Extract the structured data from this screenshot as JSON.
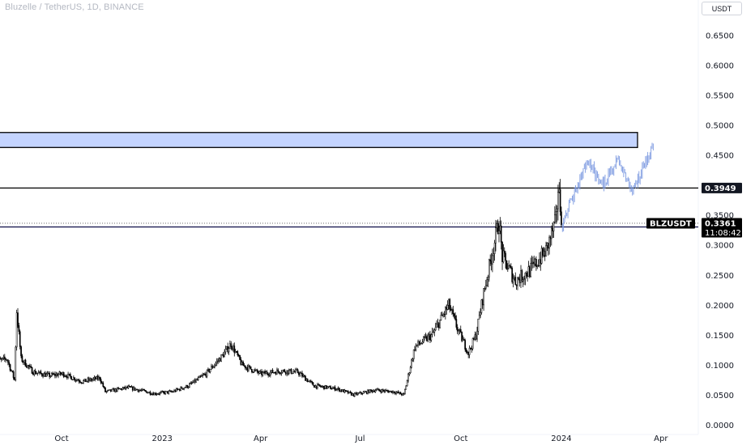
{
  "header": {
    "title": "Bluzelle / TetherUS, 1D, BINANCE",
    "currency": "USDT"
  },
  "chart_data": {
    "type": "candlestick",
    "symbol": "BLZUSDT",
    "ylim": [
      0,
      0.68
    ],
    "y_ticks": [
      "0.0000",
      "0.0500",
      "0.1000",
      "0.1500",
      "0.2000",
      "0.2500",
      "0.3000",
      "0.3500",
      "0.4500",
      "0.5000",
      "0.5500",
      "0.6000",
      "0.6500"
    ],
    "x_ticks": [
      "Oct",
      "2023",
      "Apr",
      "Jul",
      "Oct",
      "2024",
      "Apr"
    ],
    "x_tick_dates": [
      "2022-10-01",
      "2023-01-01",
      "2023-04-01",
      "2023-07-01",
      "2023-10-01",
      "2024-01-01",
      "2024-04-01"
    ],
    "price_series": [
      [
        "2022-08-01",
        0.105
      ],
      [
        "2022-08-12",
        0.11
      ],
      [
        "2022-08-19",
        0.075
      ],
      [
        "2022-08-21",
        0.19
      ],
      [
        "2022-08-25",
        0.11
      ],
      [
        "2022-09-05",
        0.088
      ],
      [
        "2022-09-20",
        0.082
      ],
      [
        "2022-10-02",
        0.085
      ],
      [
        "2022-10-20",
        0.072
      ],
      [
        "2022-11-05",
        0.078
      ],
      [
        "2022-11-10",
        0.055
      ],
      [
        "2022-12-01",
        0.062
      ],
      [
        "2022-12-25",
        0.052
      ],
      [
        "2023-01-10",
        0.055
      ],
      [
        "2023-01-25",
        0.065
      ],
      [
        "2023-02-10",
        0.085
      ],
      [
        "2023-02-25",
        0.115
      ],
      [
        "2023-03-05",
        0.135
      ],
      [
        "2023-03-15",
        0.1
      ],
      [
        "2023-04-01",
        0.085
      ],
      [
        "2023-04-20",
        0.09
      ],
      [
        "2023-05-05",
        0.088
      ],
      [
        "2023-05-20",
        0.065
      ],
      [
        "2023-06-10",
        0.06
      ],
      [
        "2023-06-25",
        0.05
      ],
      [
        "2023-07-15",
        0.058
      ],
      [
        "2023-08-01",
        0.055
      ],
      [
        "2023-08-10",
        0.05
      ],
      [
        "2023-08-20",
        0.13
      ],
      [
        "2023-09-05",
        0.15
      ],
      [
        "2023-09-20",
        0.2
      ],
      [
        "2023-09-28",
        0.16
      ],
      [
        "2023-10-08",
        0.12
      ],
      [
        "2023-10-15",
        0.15
      ],
      [
        "2023-10-22",
        0.22
      ],
      [
        "2023-11-05",
        0.34
      ],
      [
        "2023-11-08",
        0.28
      ],
      [
        "2023-11-20",
        0.24
      ],
      [
        "2023-12-05",
        0.26
      ],
      [
        "2023-12-18",
        0.29
      ],
      [
        "2023-12-27",
        0.34
      ],
      [
        "2023-12-29",
        0.395
      ],
      [
        "2024-01-02",
        0.3361
      ]
    ],
    "projection": [
      [
        "2024-01-02",
        0.3361
      ],
      [
        "2024-01-25",
        0.44
      ],
      [
        "2024-02-07",
        0.4
      ],
      [
        "2024-02-22",
        0.44
      ],
      [
        "2024-03-06",
        0.39
      ],
      [
        "2024-03-26",
        0.47
      ]
    ],
    "supply_zone": [
      0.4625,
      0.4875
    ],
    "horizontal_levels": [
      0.3949,
      0.33
    ],
    "current_price": "0.3361",
    "countdown": "11:08:42",
    "level_label": "0.3949"
  },
  "colors": {
    "candles": "#000000",
    "projection": "#7a98e0",
    "zone_fill": "#c4d4ff",
    "zone_border": "#000000",
    "level_tag": "#131722",
    "price_tag": "#000000"
  }
}
